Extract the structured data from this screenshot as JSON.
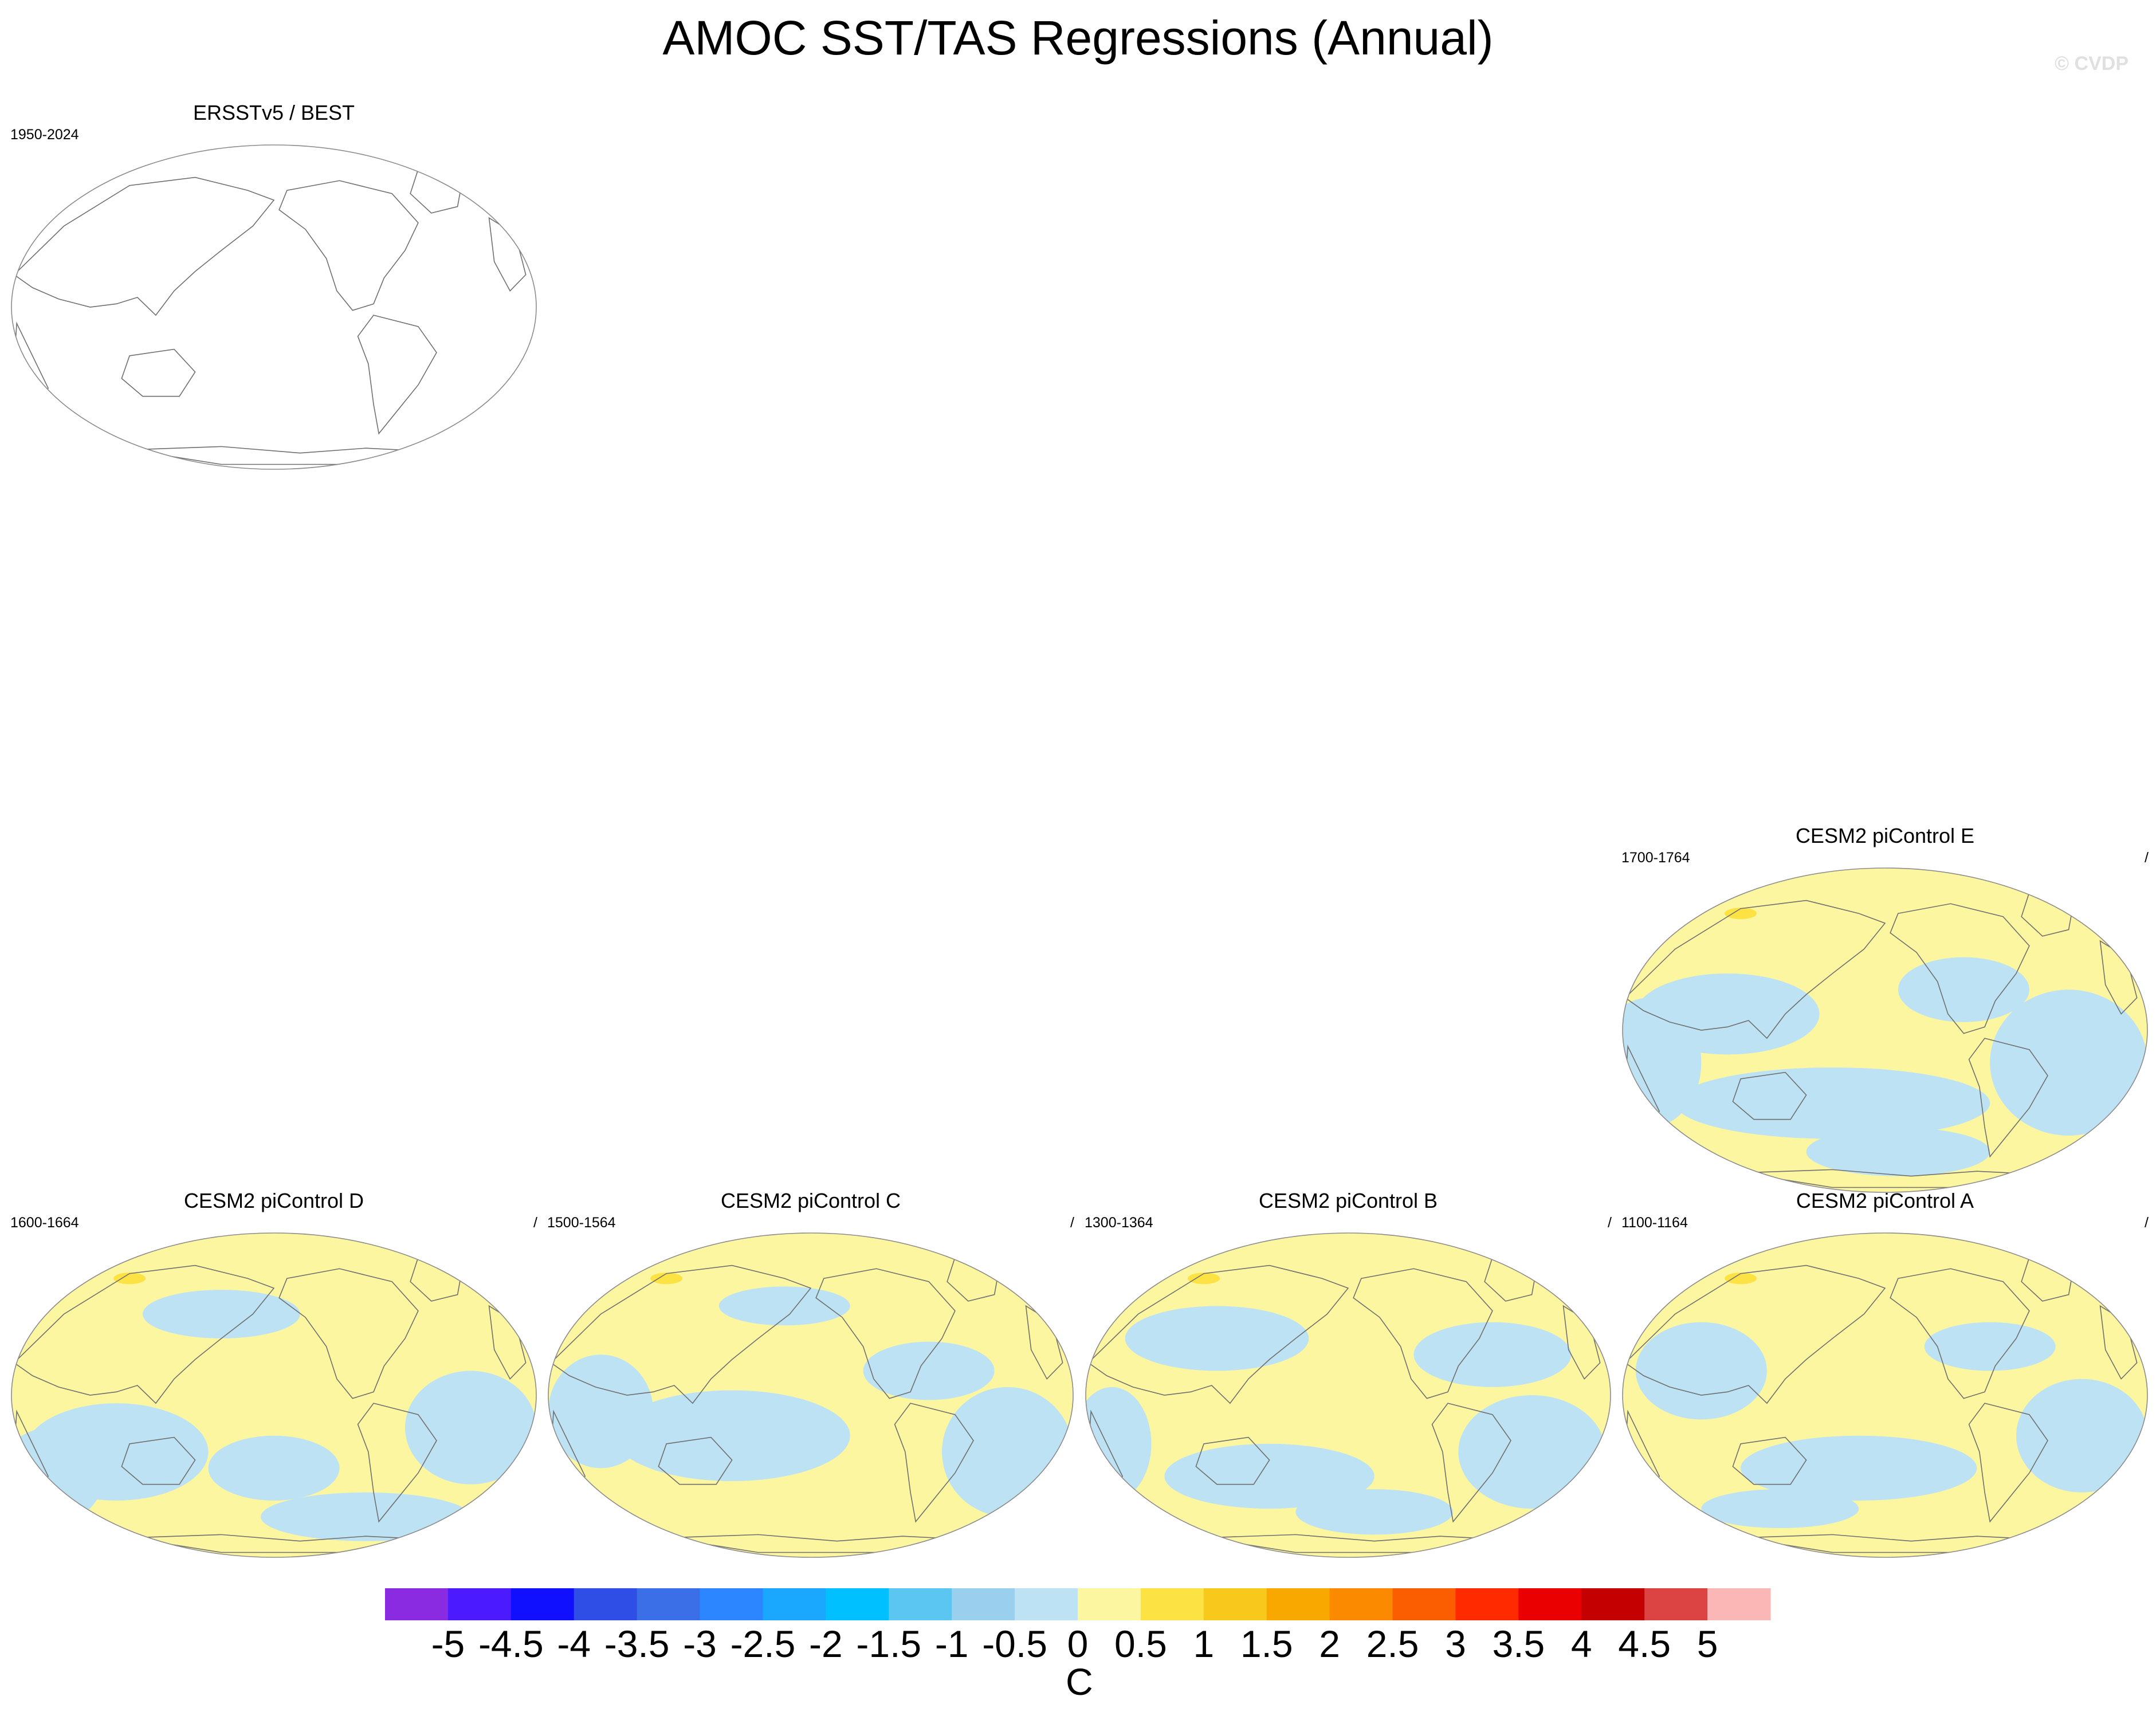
{
  "title": "AMOC SST/TAS Regressions (Annual)",
  "watermark": "© CVDP",
  "panels": [
    {
      "title": "ERSSTv5 / BEST",
      "period": "1950-2024",
      "slash": "",
      "fill": "none"
    },
    {
      "title": "CESM2 piControl E",
      "period": "1700-1764",
      "slash": "/",
      "fill": "E"
    },
    {
      "title": "CESM2 piControl D",
      "period": "1600-1664",
      "slash": "/",
      "fill": "D"
    },
    {
      "title": "CESM2 piControl C",
      "period": "1500-1564",
      "slash": "/",
      "fill": "C"
    },
    {
      "title": "CESM2 piControl B",
      "period": "1300-1364",
      "slash": "/",
      "fill": "B"
    },
    {
      "title": "CESM2 piControl A",
      "period": "1100-1164",
      "slash": "/",
      "fill": "A"
    }
  ],
  "colorbar": {
    "labels": [
      "-5",
      "-4.5",
      "-4",
      "-3.5",
      "-3",
      "-2.5",
      "-2",
      "-1.5",
      "-1",
      "-0.5",
      "0",
      "0.5",
      "1",
      "1.5",
      "2",
      "2.5",
      "3",
      "3.5",
      "4",
      "4.5",
      "5"
    ],
    "units": "C",
    "colors": [
      "#8a2be2",
      "#4b1aff",
      "#1010ff",
      "#2e4ee6",
      "#3a6fe8",
      "#2b86ff",
      "#1aa8ff",
      "#00c0ff",
      "#5cc6f2",
      "#9ad0ee",
      "#bde2f4",
      "#fdf6a0",
      "#fde244",
      "#f8c81c",
      "#f9a800",
      "#fb8a00",
      "#fb5e00",
      "#ff2a00",
      "#ea0000",
      "#c40000",
      "#dc4444",
      "#fbb6b6"
    ]
  },
  "map_colors": {
    "negative_small": "#bde2f4",
    "positive_small": "#fdf6a0",
    "positive_medium": "#fde244",
    "coast": "#6f6f6f",
    "border": "#8c8c8c"
  }
}
